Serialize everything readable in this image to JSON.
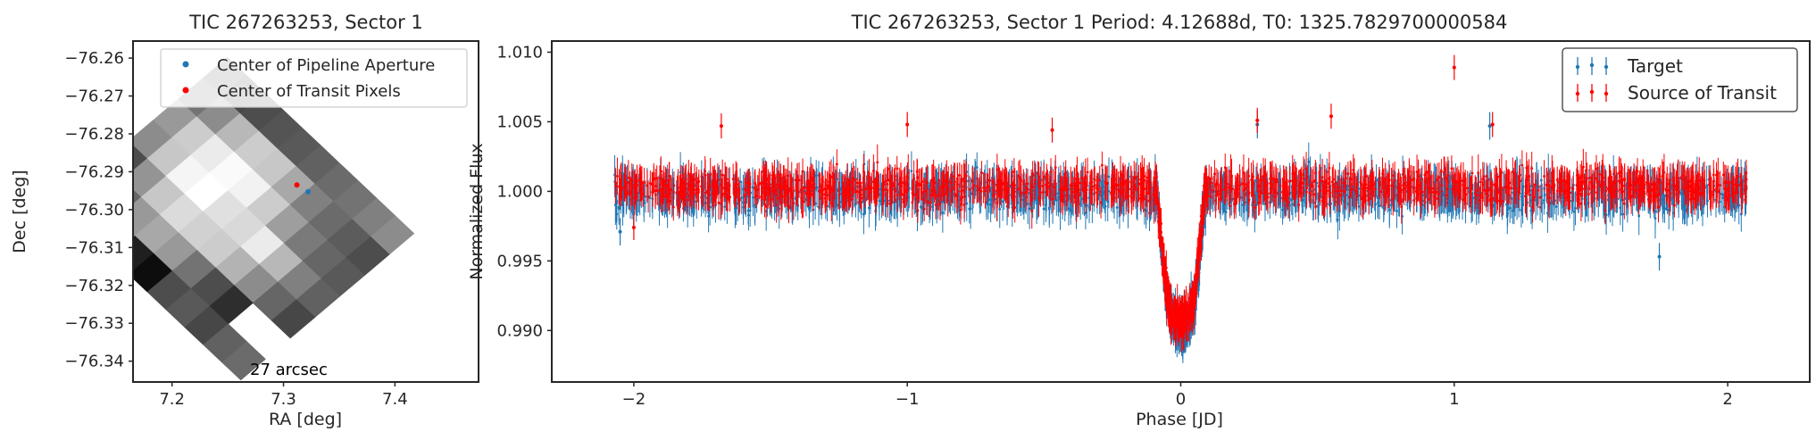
{
  "chart_data": [
    {
      "type": "heatmap",
      "title": "TIC 267263253, Sector 1",
      "xlabel": "RA [deg]",
      "ylabel": "Dec [deg]",
      "xlim": [
        7.165,
        7.475
      ],
      "ylim": [
        -76.3455,
        -76.2555
      ],
      "xticks": [
        7.2,
        7.3,
        7.4
      ],
      "xtick_labels": [
        "7.2",
        "7.3",
        "7.4"
      ],
      "yticks": [
        -76.26,
        -76.27,
        -76.28,
        -76.29,
        -76.3,
        -76.31,
        -76.32,
        -76.33,
        -76.34
      ],
      "ytick_labels": [
        "−76.26",
        "−76.27",
        "−76.28",
        "−76.29",
        "−76.30",
        "−76.31",
        "−76.32",
        "−76.33",
        "−76.34"
      ],
      "grid": false,
      "colormap": "gray",
      "scale_annotation": "27 arcsec",
      "legend": {
        "placement": "upper right",
        "entries": [
          {
            "label": "Center of Pipeline Aperture",
            "color": "#1f77b4"
          },
          {
            "label": "Center of Transit Pixels",
            "color": "#ff0000"
          }
        ]
      },
      "points": [
        {
          "series": "Center of Pipeline Aperture",
          "x": 7.322,
          "y": -76.2953,
          "color": "#1f77b4"
        },
        {
          "series": "Center of Transit Pixels",
          "x": 7.312,
          "y": -76.2935,
          "color": "#ff0000"
        }
      ],
      "pixel_grid": {
        "ra_origin": 7.2497,
        "dec_origin": -76.2598,
        "col_step": [
          0.01675,
          -0.00465
        ],
        "row_step": [
          -0.02222,
          -0.00553
        ],
        "shape": [
          7,
          10
        ],
        "values": [
          [
            0.35,
            0.28,
            0.3,
            0.33,
            0.35,
            0.38,
            0.42,
            0.45,
            0.5,
            0.55
          ],
          [
            0.45,
            0.55,
            0.72,
            0.8,
            0.78,
            0.66,
            0.5,
            0.42,
            0.36,
            0.3
          ],
          [
            0.6,
            0.8,
            0.92,
            0.98,
            0.95,
            0.8,
            0.62,
            0.48,
            0.4,
            0.35
          ],
          [
            0.55,
            0.78,
            0.96,
            1.0,
            0.88,
            0.85,
            0.92,
            0.72,
            0.5,
            0.38
          ],
          [
            0.3,
            0.58,
            0.78,
            0.86,
            0.82,
            0.8,
            0.7,
            0.55,
            0.4,
            0.28
          ],
          [
            0.05,
            0.4,
            0.6,
            0.66,
            0.6,
            0.45,
            0.3,
            0.18,
            null,
            null
          ],
          [
            null,
            null,
            null,
            0.12,
            0.05,
            0.3,
            0.35,
            0.28,
            0.38,
            0.42
          ]
        ]
      }
    },
    {
      "type": "scatter",
      "title": "TIC 267263253, Sector 1 Period: 4.12688d, T0: 1325.7829700000584",
      "xlabel": "Phase [JD]",
      "ylabel": "Normalized Flux",
      "xlim": [
        -2.3,
        2.3
      ],
      "ylim": [
        0.9863,
        1.0108
      ],
      "xticks": [
        -2,
        -1,
        0,
        1,
        2
      ],
      "xtick_labels": [
        "−2",
        "−1",
        "0",
        "1",
        "2"
      ],
      "yticks": [
        0.99,
        0.995,
        1.0,
        1.005,
        1.01
      ],
      "ytick_labels": [
        "0.990",
        "0.995",
        "1.000",
        "1.005",
        "1.010"
      ],
      "grid": false,
      "error_bars": true,
      "legend": {
        "placement": "upper right",
        "entries": [
          {
            "label": "Target",
            "color": "#1f77b4"
          },
          {
            "label": "Source of Transit",
            "color": "#ff0000"
          }
        ]
      },
      "transit": {
        "center": 0.0,
        "duration": 0.18,
        "depth": 0.0095
      },
      "series": [
        {
          "name": "Target",
          "color": "#1f77b4",
          "x_range": [
            -2.07,
            2.07
          ],
          "baseline": 0.99985,
          "scatter": 0.0011,
          "outliers": [
            {
              "x": -2.05,
              "y": 0.9971
            },
            {
              "x": 1.75,
              "y": 0.9953
            },
            {
              "x": 0.28,
              "y": 1.0048
            },
            {
              "x": 1.13,
              "y": 1.0047
            }
          ]
        },
        {
          "name": "Source of Transit",
          "color": "#ff0000",
          "x_range": [
            -2.07,
            2.07
          ],
          "baseline": 1.0003,
          "scatter": 0.001,
          "outliers": [
            {
              "x": 1.0,
              "y": 1.0089
            },
            {
              "x": 0.55,
              "y": 1.0054
            },
            {
              "x": 0.28,
              "y": 1.0051
            },
            {
              "x": -1.68,
              "y": 1.0047
            },
            {
              "x": -1.0,
              "y": 1.0048
            },
            {
              "x": -2.0,
              "y": 0.9974
            },
            {
              "x": -0.47,
              "y": 1.0044
            },
            {
              "x": 1.14,
              "y": 1.0048
            }
          ]
        }
      ]
    }
  ]
}
